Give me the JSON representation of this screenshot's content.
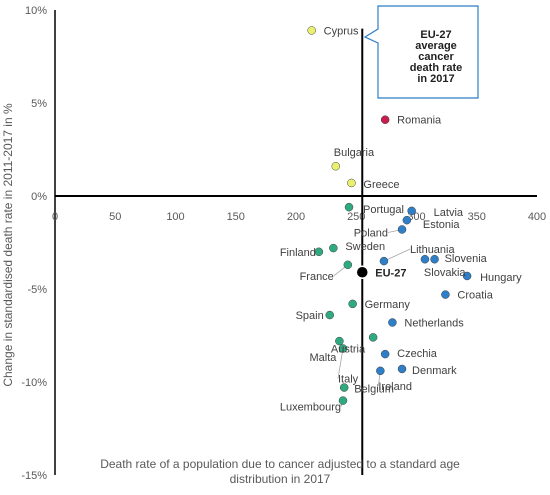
{
  "chart_data": {
    "type": "scatter",
    "title": "",
    "xlabel": "Death rate of a population due to cancer adjusted to a standard age distribution in 2017",
    "ylabel": "Change in standardised death rate in 2011-2017 in %",
    "xlim": [
      0,
      400
    ],
    "ylim": [
      -15,
      10
    ],
    "x_ticks": [
      "0",
      "50",
      "100",
      "150",
      "200",
      "250",
      "300",
      "350",
      "400"
    ],
    "y_ticks": [
      "-15%",
      "-10%",
      "-5%",
      "0%",
      "5%",
      "10%"
    ],
    "reference_lines": {
      "x": 255,
      "y": 0
    },
    "callout": "EU-27 average cancer death rate in 2017",
    "colors": {
      "yellow": "#e8f06e",
      "teal": "#2eaa7e",
      "blue": "#2e7ec8",
      "red": "#c81e4e",
      "black": "#000000",
      "callout_border": "#2e7ec8"
    },
    "points": [
      {
        "label": "Cyprus",
        "x": 213,
        "y": 8.9,
        "color": "yellow"
      },
      {
        "label": "Romania",
        "x": 274,
        "y": 4.1,
        "color": "red"
      },
      {
        "label": "Bulgaria",
        "x": 233,
        "y": 1.6,
        "color": "yellow"
      },
      {
        "label": "Greece",
        "x": 246,
        "y": 0.7,
        "color": "yellow"
      },
      {
        "label": "Portugal",
        "x": 244,
        "y": -0.6,
        "color": "teal"
      },
      {
        "label": "Latvia",
        "x": 296,
        "y": -0.8,
        "color": "blue"
      },
      {
        "label": "Estonia",
        "x": 292,
        "y": -1.3,
        "color": "blue"
      },
      {
        "label": "Poland",
        "x": 288,
        "y": -1.8,
        "color": "blue"
      },
      {
        "label": "Finland",
        "x": 219,
        "y": -3.0,
        "color": "teal"
      },
      {
        "label": "Sweden",
        "x": 231,
        "y": -2.8,
        "color": "teal"
      },
      {
        "label": "Lithuania",
        "x": 273,
        "y": -3.5,
        "color": "blue"
      },
      {
        "label": "France",
        "x": 243,
        "y": -3.7,
        "color": "teal"
      },
      {
        "label": "Slovenia",
        "x": 315,
        "y": -3.4,
        "color": "blue"
      },
      {
        "label": "Slovakia",
        "x": 307,
        "y": -3.4,
        "color": "blue"
      },
      {
        "label": "EU-27",
        "x": 255,
        "y": -4.1,
        "color": "black"
      },
      {
        "label": "Hungary",
        "x": 342,
        "y": -4.3,
        "color": "blue"
      },
      {
        "label": "Croatia",
        "x": 324,
        "y": -5.3,
        "color": "blue"
      },
      {
        "label": "Germany",
        "x": 247,
        "y": -5.8,
        "color": "teal"
      },
      {
        "label": "Spain",
        "x": 228,
        "y": -6.4,
        "color": "teal"
      },
      {
        "label": "Netherlands",
        "x": 280,
        "y": -6.8,
        "color": "blue"
      },
      {
        "label": "Austria",
        "x": 264,
        "y": -7.6,
        "color": "teal"
      },
      {
        "label": "Czechia",
        "x": 274,
        "y": -8.5,
        "color": "blue"
      },
      {
        "label": "Malta",
        "x": 236,
        "y": -7.8,
        "color": "teal"
      },
      {
        "label": "Italy",
        "x": 239,
        "y": -8.2,
        "color": "teal"
      },
      {
        "label": "Denmark",
        "x": 288,
        "y": -9.3,
        "color": "blue"
      },
      {
        "label": "Ireland",
        "x": 270,
        "y": -9.4,
        "color": "blue"
      },
      {
        "label": "Belgium",
        "x": 240,
        "y": -10.3,
        "color": "teal"
      },
      {
        "label": "Luxembourg",
        "x": 239,
        "y": -11.0,
        "color": "teal"
      }
    ]
  }
}
